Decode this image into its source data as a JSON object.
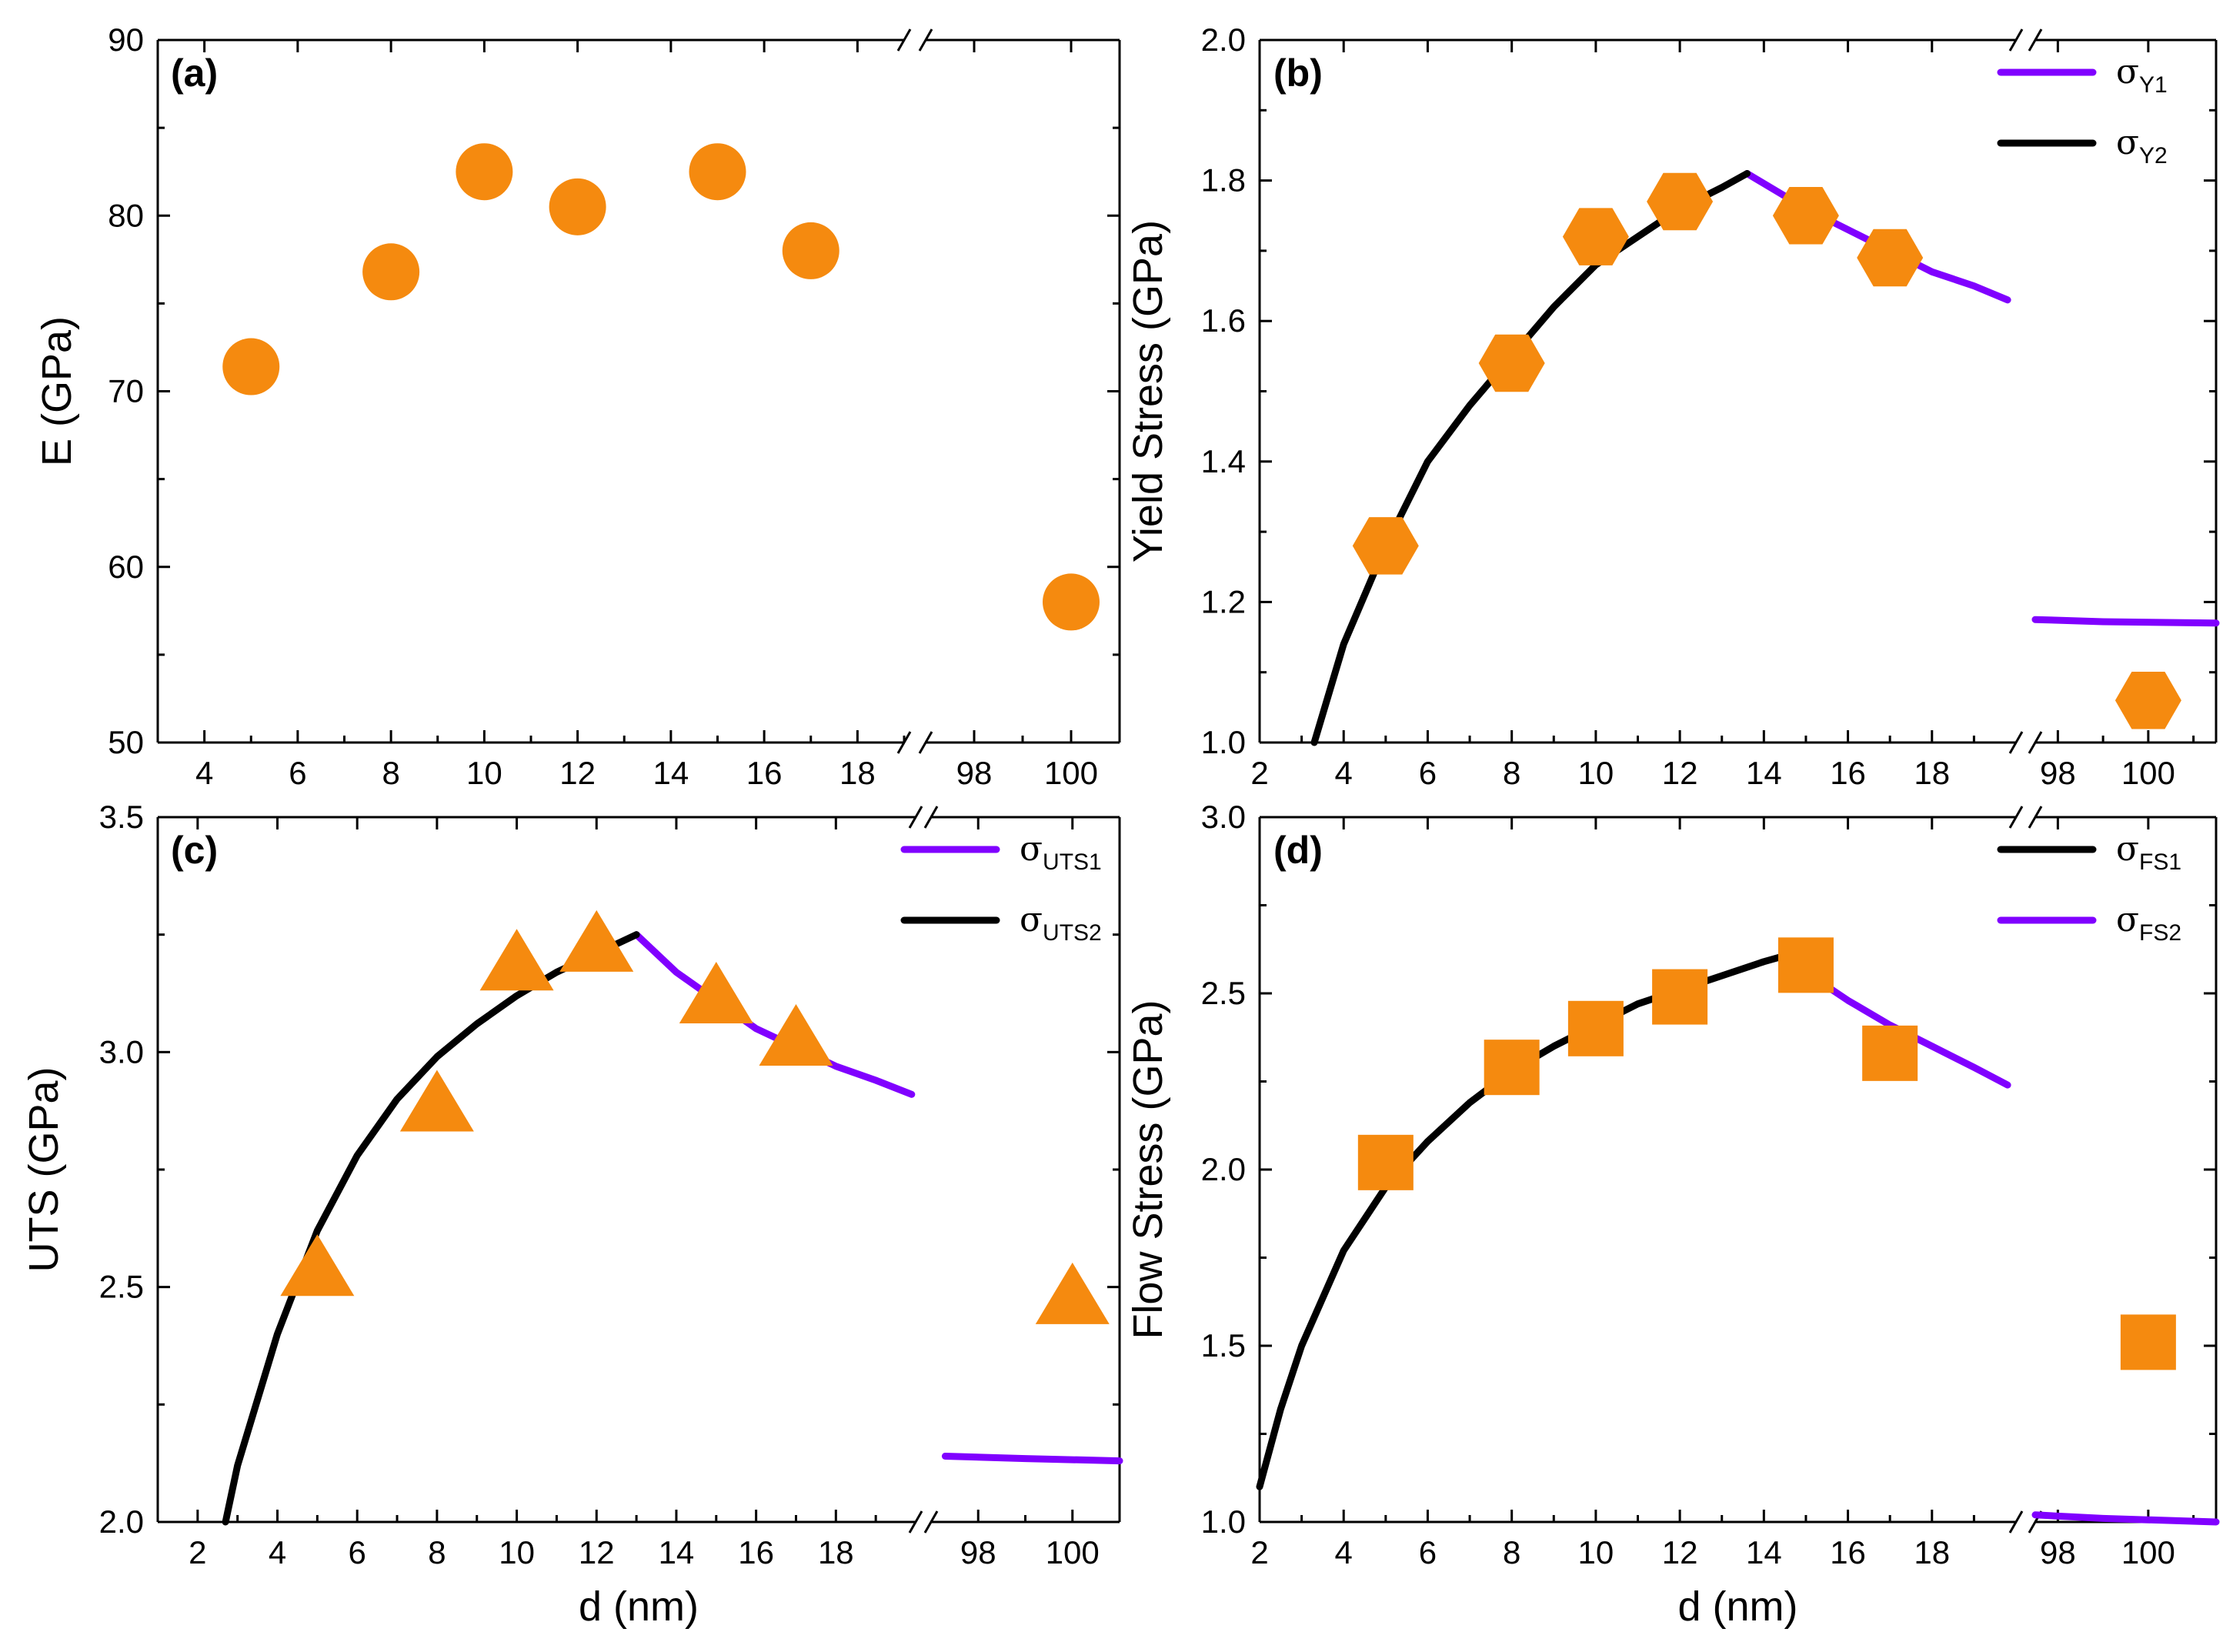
{
  "colors": {
    "marker": "#F58A0F",
    "curve_black": "#000000",
    "curve_purple": "#8000FF"
  },
  "chart_data": [
    {
      "panel": "(a)",
      "type": "scatter",
      "marker": "circle",
      "ylabel": "E (GPa)",
      "xlabel": "",
      "ylim": [
        50,
        90
      ],
      "yticks": [
        "50",
        "60",
        "70",
        "80",
        "90"
      ],
      "xlim_left": [
        3,
        19
      ],
      "xticks_left": [
        "4",
        "6",
        "8",
        "10",
        "12",
        "14",
        "16",
        "18"
      ],
      "xlim_right": [
        97,
        101
      ],
      "xticks_right": [
        "98",
        "100"
      ],
      "axis_break": true,
      "x": [
        5,
        8,
        10,
        12,
        15,
        17,
        100
      ],
      "y": [
        71.4,
        76.8,
        82.5,
        80.5,
        82.5,
        78.0,
        58.0
      ],
      "series": []
    },
    {
      "panel": "(b)",
      "type": "scatter",
      "marker": "hexagon",
      "ylabel": "Yield Stress (GPa)",
      "xlabel": "",
      "ylim": [
        1.0,
        2.0
      ],
      "yticks": [
        "1.0",
        "1.2",
        "1.4",
        "1.6",
        "1.8",
        "2.0"
      ],
      "xlim_left": [
        2,
        20
      ],
      "xticks_left": [
        "2",
        "4",
        "6",
        "8",
        "10",
        "12",
        "14",
        "16",
        "18"
      ],
      "xlim_right": [
        97.5,
        101.5
      ],
      "xticks_right": [
        "98",
        "100"
      ],
      "axis_break": true,
      "x": [
        5,
        8,
        10,
        12,
        15,
        17,
        100
      ],
      "y": [
        1.28,
        1.54,
        1.72,
        1.77,
        1.75,
        1.69,
        1.06
      ],
      "legend_position": "top-right",
      "series": [
        {
          "name": "σ",
          "sub": "Y1",
          "color": "#8000FF",
          "x": [
            13.6,
            15,
            16,
            17,
            18,
            19,
            19.8
          ],
          "y": [
            1.81,
            1.76,
            1.73,
            1.7,
            1.67,
            1.65,
            1.63
          ],
          "x_right": [
            97.5,
            99,
            101.5
          ],
          "y_right": [
            1.175,
            1.172,
            1.17
          ]
        },
        {
          "name": "σ",
          "sub": "Y2",
          "color": "#000000",
          "x": [
            3.3,
            4,
            5,
            6,
            7,
            8,
            9,
            10,
            11,
            12,
            13,
            13.6
          ],
          "y": [
            1.0,
            1.14,
            1.28,
            1.4,
            1.48,
            1.55,
            1.62,
            1.68,
            1.72,
            1.76,
            1.79,
            1.81
          ]
        }
      ]
    },
    {
      "panel": "(c)",
      "type": "scatter",
      "marker": "triangle",
      "ylabel": "UTS (GPa)",
      "xlabel": "d (nm)",
      "ylim": [
        2.0,
        3.5
      ],
      "yticks": [
        "2.0",
        "2.5",
        "3.0",
        "3.5"
      ],
      "xlim_left": [
        1,
        20
      ],
      "xticks_left": [
        "2",
        "4",
        "6",
        "8",
        "10",
        "12",
        "14",
        "16",
        "18"
      ],
      "xlim_right": [
        97,
        101
      ],
      "xticks_right": [
        "98",
        "100"
      ],
      "axis_break": true,
      "x": [
        5,
        8,
        10,
        12,
        15,
        17,
        100
      ],
      "y": [
        2.54,
        2.89,
        3.19,
        3.23,
        3.12,
        3.03,
        2.48
      ],
      "legend_position": "top-right",
      "series": [
        {
          "name": "σ",
          "sub": "UTS1",
          "color": "#8000FF",
          "x": [
            13,
            14,
            15,
            16,
            17,
            18,
            19,
            19.9
          ],
          "y": [
            3.25,
            3.17,
            3.11,
            3.05,
            3.01,
            2.97,
            2.94,
            2.91
          ],
          "x_right": [
            97.3,
            99,
            101
          ],
          "y_right": [
            2.14,
            2.135,
            2.13
          ]
        },
        {
          "name": "σ",
          "sub": "UTS2",
          "color": "#000000",
          "x": [
            2.7,
            3,
            4,
            5,
            6,
            7,
            8,
            9,
            10,
            11,
            12,
            13
          ],
          "y": [
            2.0,
            2.12,
            2.4,
            2.62,
            2.78,
            2.9,
            2.99,
            3.06,
            3.12,
            3.17,
            3.21,
            3.25
          ]
        }
      ]
    },
    {
      "panel": "(d)",
      "type": "scatter",
      "marker": "square",
      "ylabel": "Flow Stress (GPa)",
      "xlabel": "d (nm)",
      "ylim": [
        1.0,
        3.0
      ],
      "yticks": [
        "1.0",
        "1.5",
        "2.0",
        "2.5",
        "3.0"
      ],
      "xlim_left": [
        2,
        20
      ],
      "xticks_left": [
        "2",
        "4",
        "6",
        "8",
        "10",
        "12",
        "14",
        "16",
        "18"
      ],
      "xlim_right": [
        97.5,
        101.5
      ],
      "xticks_right": [
        "98",
        "100"
      ],
      "axis_break": true,
      "x": [
        5,
        8,
        10,
        12,
        15,
        17,
        100
      ],
      "y": [
        2.02,
        2.29,
        2.4,
        2.49,
        2.58,
        2.33,
        1.51
      ],
      "legend_position": "top-right",
      "series": [
        {
          "name": "σ",
          "sub": "FS1",
          "color": "#000000",
          "x": [
            2,
            2.5,
            3,
            4,
            5,
            6,
            7,
            8,
            9,
            10,
            11,
            12,
            13,
            14,
            14.6
          ],
          "y": [
            1.1,
            1.32,
            1.5,
            1.77,
            1.95,
            2.08,
            2.19,
            2.28,
            2.35,
            2.41,
            2.47,
            2.51,
            2.55,
            2.59,
            2.61
          ]
        },
        {
          "name": "σ",
          "sub": "FS2",
          "color": "#8000FF",
          "x": [
            14.6,
            15,
            16,
            17,
            18,
            19,
            19.8
          ],
          "y": [
            2.61,
            2.56,
            2.48,
            2.41,
            2.35,
            2.29,
            2.24
          ],
          "x_right": [
            97.5,
            99,
            101.5
          ],
          "y_right": [
            1.02,
            1.01,
            1.0
          ]
        }
      ]
    }
  ]
}
